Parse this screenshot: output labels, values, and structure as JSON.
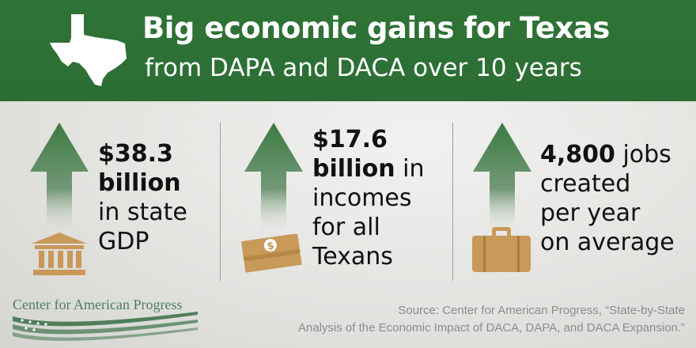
{
  "header": {
    "title": "Big economic gains for Texas",
    "subtitle": "from DAPA and DACA over 10 years"
  },
  "colors": {
    "header_green": "#2f7437",
    "arrow_green": "#3b7a42",
    "icon_tan": "#c9995a",
    "text_dark": "#111111",
    "source_gray": "#8c8c8c",
    "logo_green": "#4f7f5a"
  },
  "stats": [
    {
      "bold1": "$38.3",
      "bold2": "billion",
      "rest": [
        "in state",
        "GDP"
      ],
      "icon": "bank-building-icon"
    },
    {
      "bold1": "$17.6",
      "bold2": "billion",
      "rest_inline": "in",
      "rest": [
        "incomes",
        "for all",
        "Texans"
      ],
      "icon": "money-stack-icon"
    },
    {
      "bold1": "4,800",
      "rest_inline": "jobs",
      "rest": [
        "created",
        "per year",
        "on average"
      ],
      "icon": "briefcase-icon"
    }
  ],
  "footer": {
    "logo_text": "Center for American Progress",
    "source_line1": "Source: Center for American Progress, “State-by-State",
    "source_line2": "Analysis of the Economic Impact of DACA, DAPA, and DACA Expansion.”"
  }
}
